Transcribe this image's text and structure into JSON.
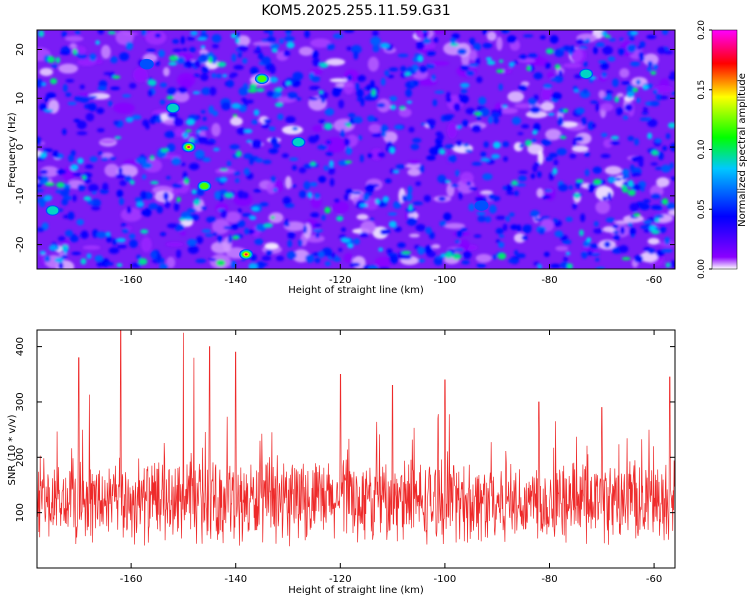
{
  "title": "KOM5.2025.255.11.59.G31",
  "chart_data": [
    {
      "type": "heatmap",
      "xlabel": "Height of straight line (km)",
      "ylabel": "Frequency (Hz)",
      "xlim": [
        -178,
        -56
      ],
      "ylim": [
        -25,
        24
      ],
      "xticks": [
        -160,
        -140,
        -120,
        -100,
        -80,
        -60
      ],
      "yticks": [
        -20,
        -10,
        0,
        10,
        20
      ],
      "colorbar": {
        "label": "Normalized spectral amplitude",
        "range": [
          0.0,
          0.2
        ],
        "ticks": [
          "0.00",
          "0.05",
          "0.10",
          "0.15",
          "0.20"
        ],
        "colors": [
          "#ffffff",
          "#8a00ff",
          "#0000ff",
          "#00c8ff",
          "#00ff00",
          "#ffff00",
          "#ff0000",
          "#ff00ff"
        ]
      },
      "background_level": 0.03,
      "peaks": [
        {
          "x": -149,
          "y": 0,
          "value": 0.18
        },
        {
          "x": -146,
          "y": -8,
          "value": 0.12
        },
        {
          "x": -138,
          "y": -22,
          "value": 0.19
        },
        {
          "x": -135,
          "y": 14,
          "value": 0.13
        },
        {
          "x": -128,
          "y": 1,
          "value": 0.09
        },
        {
          "x": -152,
          "y": 8,
          "value": 0.1
        },
        {
          "x": -175,
          "y": -13,
          "value": 0.09
        },
        {
          "x": -73,
          "y": 15,
          "value": 0.09
        },
        {
          "x": -93,
          "y": -12,
          "value": 0.08
        },
        {
          "x": -157,
          "y": 17,
          "value": 0.08
        }
      ]
    },
    {
      "type": "line",
      "xlabel": "Height of straight line (km)",
      "ylabel": "SNR (10 * v/v)",
      "xlim": [
        -178,
        -56
      ],
      "ylim": [
        0,
        430
      ],
      "xticks": [
        -160,
        -140,
        -120,
        -100,
        -80,
        -60
      ],
      "yticks": [
        100,
        200,
        300,
        400
      ],
      "color": "#ee2a2a",
      "baseline_mean": 120,
      "noise_spread": 70,
      "peaks": [
        {
          "x": -162,
          "y": 430
        },
        {
          "x": -150,
          "y": 425
        },
        {
          "x": -145,
          "y": 400
        },
        {
          "x": -140,
          "y": 390
        },
        {
          "x": -148,
          "y": 380
        },
        {
          "x": -170,
          "y": 380
        },
        {
          "x": -57,
          "y": 345
        },
        {
          "x": -120,
          "y": 350
        },
        {
          "x": -100,
          "y": 340
        },
        {
          "x": -110,
          "y": 330
        },
        {
          "x": -82,
          "y": 300
        },
        {
          "x": -70,
          "y": 290
        }
      ]
    }
  ]
}
